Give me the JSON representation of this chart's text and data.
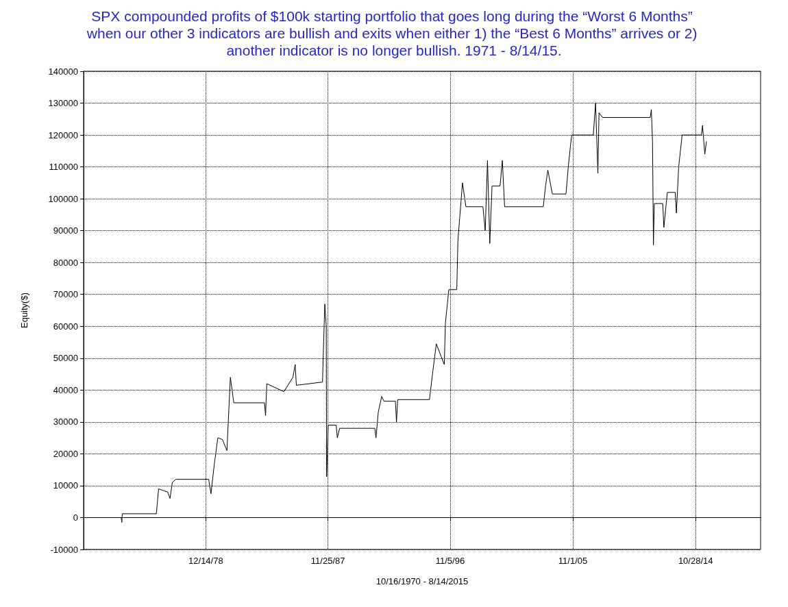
{
  "chart_data": {
    "type": "line",
    "title": "SPX compounded profits of $100k starting portfolio that goes long during the “Worst 6 Months” when our other 3 indicators are bullish and exits when either 1) the “Best 6 Months” arrives or 2) another indicator is no longer bullish. 1971 - 8/14/15.",
    "xlabel": "10/16/1970 - 8/14/2015",
    "ylabel": "Equity($)",
    "series": [
      {
        "color": "#000000",
        "x": [
          "1972-10",
          "1972-10-20",
          "1972-11",
          "1975-05",
          "1975-07",
          "1976-03",
          "1976-05",
          "1976-07",
          "1976-10",
          "1979-03",
          "1979-05",
          "1979-08",
          "1979-11",
          "1980-03",
          "1980-07",
          "1980-10",
          "1981-01",
          "1983-04",
          "1983-05",
          "1983-06",
          "1984-09",
          "1985-05",
          "1985-07",
          "1985-08",
          "1987-07",
          "1987-08",
          "1987-09",
          "1987-10-10",
          "1987-10-20",
          "1987-12",
          "1988-07",
          "1988-08",
          "1988-10",
          "1991-05",
          "1991-06",
          "1991-08",
          "1991-11",
          "1992-01",
          "1992-11",
          "1992-12",
          "1993-01",
          "1995-05",
          "1995-08",
          "1995-11",
          "1996-06",
          "1996-07",
          "1996-10",
          "1997-05",
          "1997-06",
          "1997-10",
          "1998-01",
          "1999-04",
          "1999-06",
          "1999-08",
          "1999-10",
          "1999-12",
          "2000-07",
          "2000-09",
          "2000-11",
          "2003-09",
          "2003-11",
          "2004-01",
          "2004-05",
          "2005-05",
          "2005-07",
          "2005-09",
          "2005-10",
          "2007-05",
          "2007-07",
          "2007-09",
          "2007-10",
          "2008-01",
          "2011-07",
          "2011-08",
          "2011-09",
          "2011-09-25",
          "2011-10-20",
          "2012-06",
          "2012-07",
          "2012-10",
          "2013-05",
          "2013-06",
          "2013-08",
          "2013-11",
          "2015-04",
          "2015-05",
          "2015-07",
          "2015-08-14"
        ],
        "values": [
          0,
          -1500,
          1200,
          1200,
          9000,
          8000,
          6000,
          11000,
          12000,
          12000,
          7500,
          17000,
          25000,
          24500,
          21000,
          44000,
          36000,
          36000,
          32000,
          42000,
          39500,
          44000,
          48000,
          41500,
          42500,
          55000,
          67000,
          60000,
          12800,
          29000,
          29000,
          25000,
          28000,
          28000,
          25000,
          33000,
          38000,
          36500,
          36500,
          30000,
          37000,
          37000,
          46000,
          54500,
          48000,
          61000,
          71500,
          71500,
          87000,
          105000,
          97500,
          97500,
          90000,
          112000,
          86000,
          104000,
          104000,
          112000,
          97500,
          97500,
          104000,
          109000,
          101500,
          101500,
          110000,
          117000,
          120000,
          120000,
          130000,
          108000,
          127000,
          125500,
          125500,
          128000,
          118000,
          85500,
          98500,
          98500,
          91000,
          102000,
          102000,
          95500,
          110000,
          120000,
          120000,
          123000,
          114000,
          118000
        ]
      }
    ],
    "xlim": [
      "1970-01-01",
      "2019-08-01"
    ],
    "xticks": [
      {
        "value": "1978-12-14",
        "label": "12/14/78"
      },
      {
        "value": "1987-11-25",
        "label": "11/25/87"
      },
      {
        "value": "1996-11-05",
        "label": "11/5/96"
      },
      {
        "value": "2005-11-01",
        "label": "11/1/05"
      },
      {
        "value": "2014-10-28",
        "label": "10/28/14"
      }
    ],
    "ylim": [
      -10000,
      140000
    ],
    "yticks": [
      -10000,
      0,
      10000,
      20000,
      30000,
      40000,
      50000,
      60000,
      70000,
      80000,
      90000,
      100000,
      110000,
      120000,
      130000,
      140000
    ],
    "ref_lines": [
      {
        "axis": "y",
        "value": 0,
        "color": "#000000"
      }
    ],
    "grid": true,
    "marker": "none",
    "line_style": "solid"
  }
}
